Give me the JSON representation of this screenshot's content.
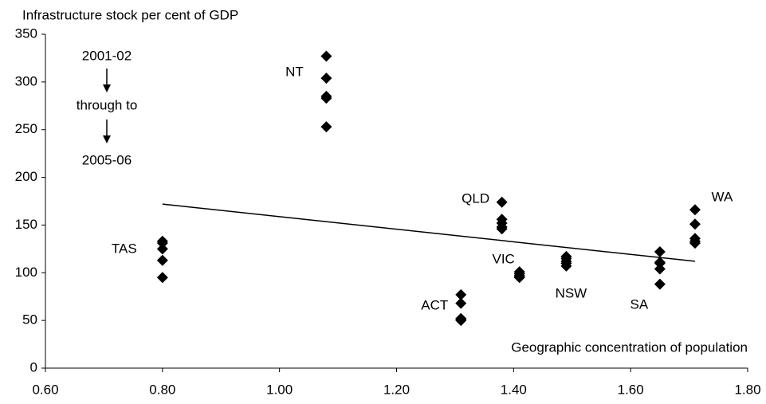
{
  "chart_data": {
    "type": "scatter",
    "ylabel": "Infrastructure stock per cent of GDP",
    "xlabel": "Geographic concentration of population",
    "annotations": [
      "2001-02",
      "through to",
      "2005-06"
    ],
    "xlim": [
      0.6,
      1.8
    ],
    "xticks": [
      {
        "value": 0.6,
        "label": "0.60"
      },
      {
        "value": 0.8,
        "label": "0.80"
      },
      {
        "value": 1.0,
        "label": "1.00"
      },
      {
        "value": 1.2,
        "label": "1.20"
      },
      {
        "value": 1.4,
        "label": "1.40"
      },
      {
        "value": 1.6,
        "label": "1.60"
      },
      {
        "value": 1.8,
        "label": "1.80"
      }
    ],
    "ylim": [
      0,
      350
    ],
    "yticks": [
      0,
      50,
      100,
      150,
      200,
      250,
      300,
      350
    ],
    "color": "#000000",
    "series": [
      {
        "name": "TAS",
        "x": [
          0.8,
          0.8,
          0.8,
          0.8,
          0.8
        ],
        "values": [
          133,
          131,
          125,
          113,
          95
        ]
      },
      {
        "name": "NT",
        "x": [
          1.08,
          1.08,
          1.08,
          1.08,
          1.08
        ],
        "values": [
          327,
          304,
          285,
          283,
          253
        ]
      },
      {
        "name": "QLD",
        "x": [
          1.38,
          1.38,
          1.38,
          1.38,
          1.38
        ],
        "values": [
          174,
          156,
          152,
          148,
          146
        ]
      },
      {
        "name": "VIC",
        "x": [
          1.41,
          1.41,
          1.41,
          1.41,
          1.41
        ],
        "values": [
          101,
          99,
          97,
          96,
          95
        ]
      },
      {
        "name": "ACT",
        "x": [
          1.31,
          1.31,
          1.31,
          1.31,
          1.31
        ],
        "values": [
          77,
          68,
          52,
          51,
          50
        ]
      },
      {
        "name": "NSW",
        "x": [
          1.49,
          1.49,
          1.49,
          1.49,
          1.49
        ],
        "values": [
          117,
          115,
          112,
          110,
          107
        ]
      },
      {
        "name": "SA",
        "x": [
          1.65,
          1.65,
          1.65,
          1.65,
          1.65
        ],
        "values": [
          122,
          111,
          110,
          104,
          88
        ]
      },
      {
        "name": "WA",
        "x": [
          1.71,
          1.71,
          1.71,
          1.71,
          1.71
        ],
        "values": [
          166,
          151,
          136,
          133,
          131
        ]
      }
    ],
    "trendline": {
      "x": [
        0.8,
        1.71
      ],
      "values": [
        172,
        112
      ]
    }
  }
}
